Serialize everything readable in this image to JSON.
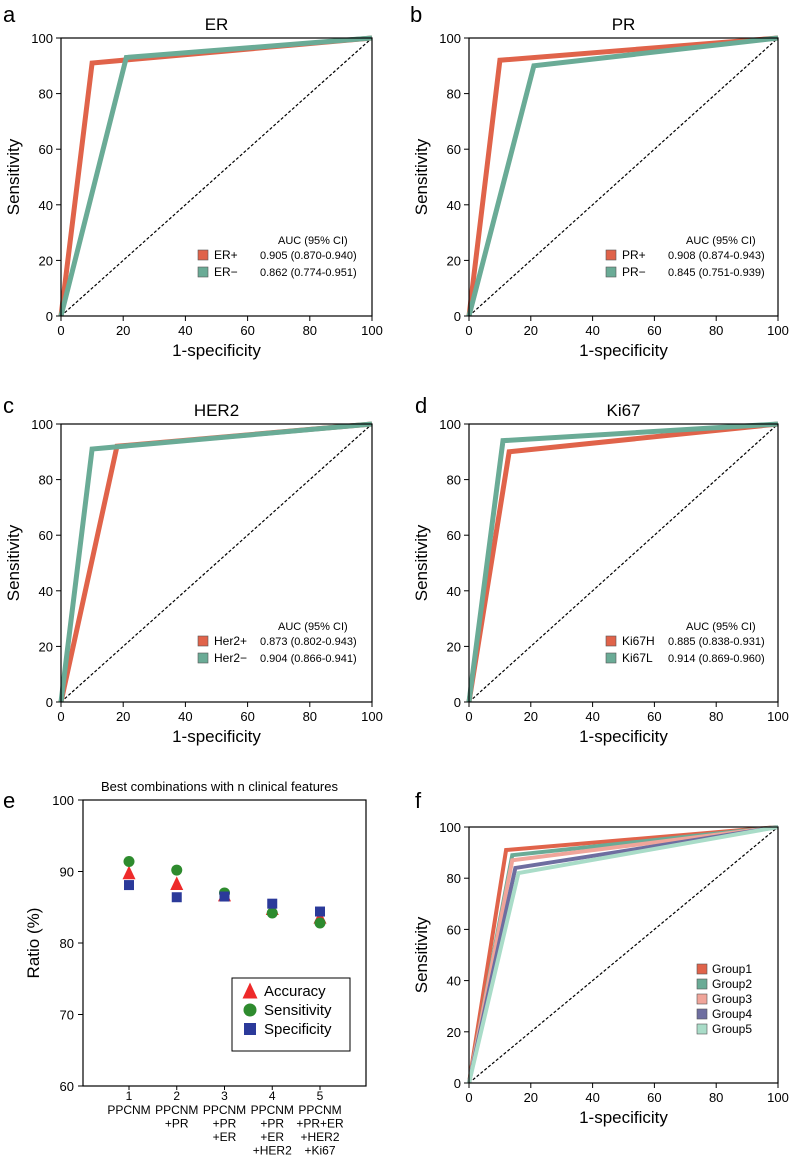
{
  "chart_data": [
    {
      "panel": "a",
      "type": "line",
      "title": "ER",
      "xlabel": "1-specificity",
      "ylabel": "Sensitivity",
      "xlim": [
        0,
        100
      ],
      "ylim": [
        0,
        100
      ],
      "ticks": [
        "0",
        "20",
        "40",
        "60",
        "80",
        "100"
      ],
      "legend_header": "AUC (95% CI)",
      "series": [
        {
          "name": "ER+",
          "auc": "0.905 (0.870-0.940)",
          "color": "#e0634a",
          "x": [
            0,
            10,
            100
          ],
          "y": [
            0,
            91,
            100
          ]
        },
        {
          "name": "ER−",
          "auc": "0.862 (0.774-0.951)",
          "color": "#6aab96",
          "x": [
            0,
            21,
            100
          ],
          "y": [
            0,
            93,
            100
          ]
        }
      ]
    },
    {
      "panel": "b",
      "type": "line",
      "title": "PR",
      "xlabel": "1-specificity",
      "ylabel": "Sensitivity",
      "xlim": [
        0,
        100
      ],
      "ylim": [
        0,
        100
      ],
      "ticks": [
        "0",
        "20",
        "40",
        "60",
        "80",
        "100"
      ],
      "legend_header": "AUC (95% CI)",
      "series": [
        {
          "name": "PR+",
          "auc": "0.908 (0.874-0.943)",
          "color": "#e0634a",
          "x": [
            0,
            10,
            100
          ],
          "y": [
            0,
            92,
            100
          ]
        },
        {
          "name": "PR−",
          "auc": "0.845 (0.751-0.939)",
          "color": "#6aab96",
          "x": [
            0,
            21,
            100
          ],
          "y": [
            0,
            90,
            100
          ]
        }
      ]
    },
    {
      "panel": "c",
      "type": "line",
      "title": "HER2",
      "xlabel": "1-specificity",
      "ylabel": "Sensitivity",
      "xlim": [
        0,
        100
      ],
      "ylim": [
        0,
        100
      ],
      "ticks": [
        "0",
        "20",
        "40",
        "60",
        "80",
        "100"
      ],
      "legend_header": "AUC (95% CI)",
      "series": [
        {
          "name": "Her2+",
          "auc": "0.873 (0.802-0.943)",
          "color": "#e0634a",
          "x": [
            0,
            18,
            100
          ],
          "y": [
            0,
            92,
            100
          ]
        },
        {
          "name": "Her2−",
          "auc": "0.904 (0.866-0.941)",
          "color": "#6aab96",
          "x": [
            0,
            10,
            100
          ],
          "y": [
            0,
            91,
            100
          ]
        }
      ]
    },
    {
      "panel": "d",
      "type": "line",
      "title": "Ki67",
      "xlabel": "1-specificity",
      "ylabel": "Sensitivity",
      "xlim": [
        0,
        100
      ],
      "ylim": [
        0,
        100
      ],
      "ticks": [
        "0",
        "20",
        "40",
        "60",
        "80",
        "100"
      ],
      "legend_header": "AUC (95% CI)",
      "series": [
        {
          "name": "Ki67H",
          "auc": "0.885 (0.838-0.931)",
          "color": "#e0634a",
          "x": [
            0,
            13,
            100
          ],
          "y": [
            0,
            90,
            100
          ]
        },
        {
          "name": "Ki67L",
          "auc": "0.914 (0.869-0.960)",
          "color": "#6aab96",
          "x": [
            0,
            11,
            100
          ],
          "y": [
            0,
            94,
            100
          ]
        }
      ]
    },
    {
      "panel": "e",
      "type": "scatter",
      "title": "Best combinations with n clinical features",
      "ylabel": "Ratio (%)",
      "ylim": [
        60,
        100
      ],
      "yticks": [
        "60",
        "70",
        "80",
        "90",
        "100"
      ],
      "categories": [
        {
          "n": "1",
          "lines": [
            "PPCNM"
          ]
        },
        {
          "n": "2",
          "lines": [
            "PPCNM",
            "+PR"
          ]
        },
        {
          "n": "3",
          "lines": [
            "PPCNM",
            "+PR",
            "+ER"
          ]
        },
        {
          "n": "4",
          "lines": [
            "PPCNM",
            "+PR",
            "+ER",
            "+HER2"
          ]
        },
        {
          "n": "5",
          "lines": [
            "PPCNM",
            "+PR+ER",
            "+HER2",
            "+Ki67"
          ]
        }
      ],
      "series": [
        {
          "name": "Accuracy",
          "marker": "triangle",
          "color": "#ee2a2a",
          "values": [
            89.8,
            88.3,
            86.7,
            84.8,
            83.6
          ]
        },
        {
          "name": "Sensitivity",
          "marker": "circle",
          "color": "#2e8b2e",
          "values": [
            91.4,
            90.2,
            87.0,
            84.2,
            82.8
          ]
        },
        {
          "name": "Specificity",
          "marker": "square",
          "color": "#2b3a9a",
          "values": [
            88.1,
            86.4,
            86.5,
            85.5,
            84.4
          ]
        }
      ]
    },
    {
      "panel": "f",
      "type": "line",
      "title": "",
      "xlabel": "1-specificity",
      "ylabel": "Sensitivity",
      "xlim": [
        0,
        100
      ],
      "ylim": [
        0,
        100
      ],
      "ticks": [
        "0",
        "20",
        "40",
        "60",
        "80",
        "100"
      ],
      "series": [
        {
          "name": "Group1",
          "color": "#e0634a",
          "x": [
            0,
            12,
            100
          ],
          "y": [
            0,
            91,
            100
          ]
        },
        {
          "name": "Group2",
          "color": "#6aab96",
          "x": [
            0,
            14,
            100
          ],
          "y": [
            0,
            89,
            100
          ]
        },
        {
          "name": "Group3",
          "color": "#f0a59a",
          "x": [
            0,
            14,
            100
          ],
          "y": [
            0,
            87,
            100
          ]
        },
        {
          "name": "Group4",
          "color": "#6e6ea0",
          "x": [
            0,
            15,
            100
          ],
          "y": [
            0,
            84,
            100
          ]
        },
        {
          "name": "Group5",
          "color": "#a9dcc8",
          "x": [
            0,
            16,
            100
          ],
          "y": [
            0,
            82,
            100
          ]
        }
      ]
    }
  ]
}
